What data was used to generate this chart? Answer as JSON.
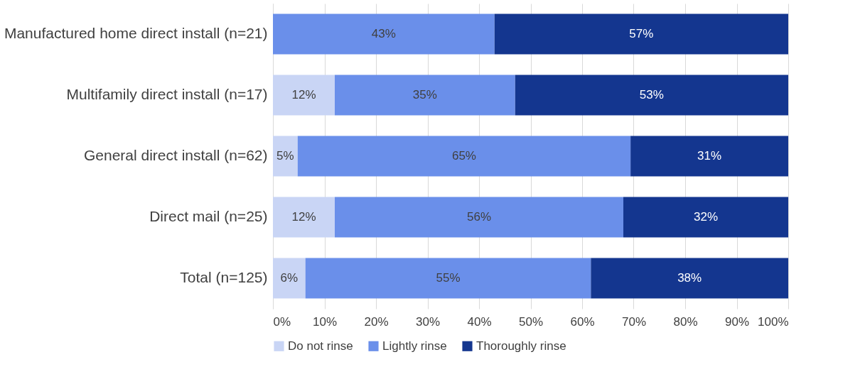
{
  "chart_data": {
    "type": "bar",
    "orientation": "horizontal",
    "stacked": true,
    "categories": [
      "Manufactured home direct install (n=21)",
      "Multifamily direct install (n=17)",
      "General direct install (n=62)",
      "Direct mail (n=25)",
      "Total (n=125)"
    ],
    "series": [
      {
        "name": "Do not rinse",
        "color": "#c9d5f5",
        "values": [
          0,
          12,
          4.8,
          12,
          6.3
        ],
        "value_labels": [
          null,
          "12%",
          "5%",
          "12%",
          "6%"
        ]
      },
      {
        "name": "Lightly rinse",
        "color": "#6a8fea",
        "values": [
          43,
          35,
          64.6,
          56,
          55.4
        ],
        "value_labels": [
          "43%",
          "35%",
          "65%",
          "56%",
          "55%"
        ]
      },
      {
        "name": "Thoroughly rinse",
        "color": "#14368f",
        "values": [
          57,
          53,
          30.6,
          32,
          38.3
        ],
        "value_labels": [
          "57%",
          "53%",
          "31%",
          "32%",
          "38%"
        ]
      }
    ],
    "xlim": [
      0,
      100
    ],
    "xticks": [
      {
        "value": 0,
        "label": "0%"
      },
      {
        "value": 10,
        "label": "10%"
      },
      {
        "value": 20,
        "label": "20%"
      },
      {
        "value": 30,
        "label": "30%"
      },
      {
        "value": 40,
        "label": "40%"
      },
      {
        "value": 50,
        "label": "50%"
      },
      {
        "value": 60,
        "label": "60%"
      },
      {
        "value": 70,
        "label": "70%"
      },
      {
        "value": 80,
        "label": "80%"
      },
      {
        "value": 90,
        "label": "90%"
      },
      {
        "value": 100,
        "label": "100%"
      }
    ],
    "grid": "x",
    "legend": "bottom"
  }
}
